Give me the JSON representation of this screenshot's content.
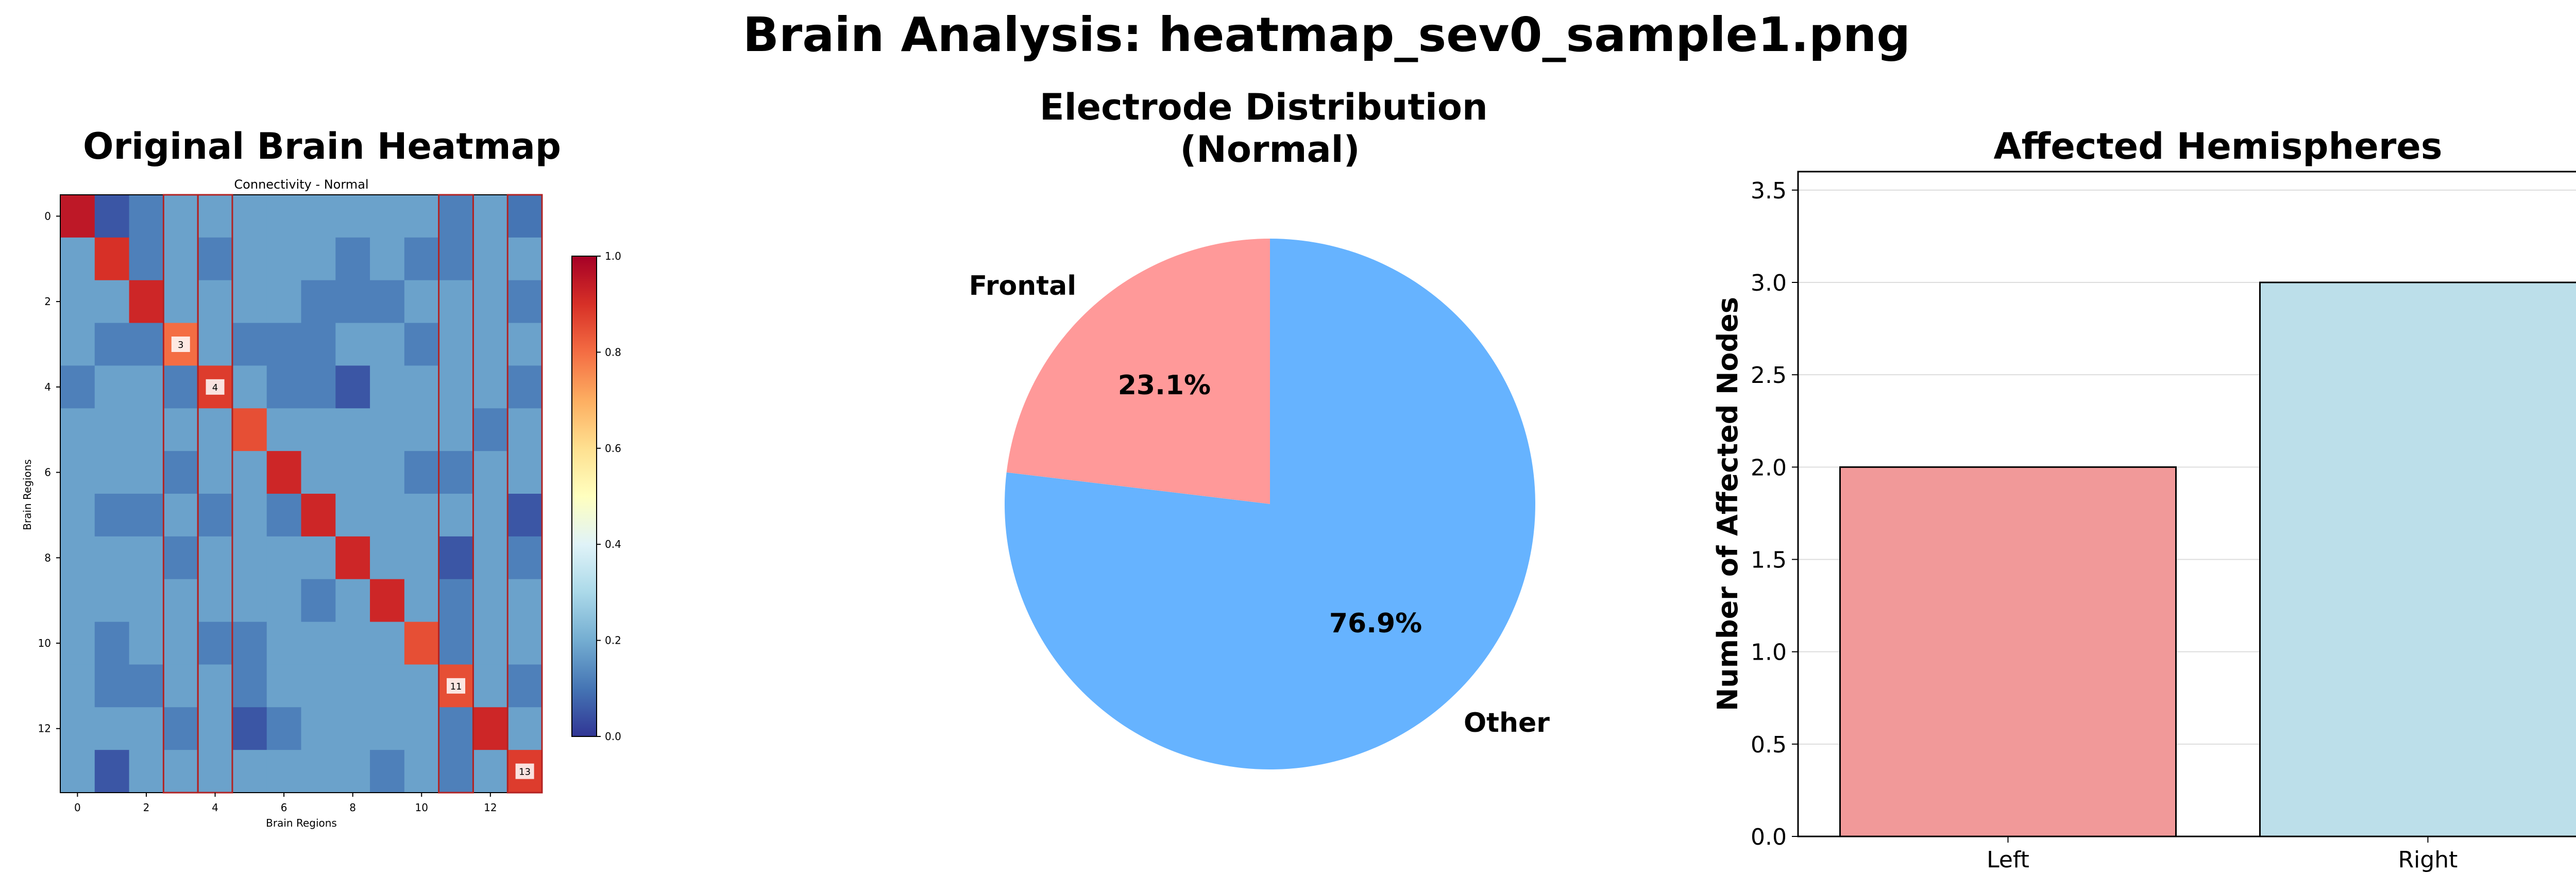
{
  "figure": {
    "suptitle": "Brain Analysis: heatmap_sev0_sample1.png"
  },
  "chart_data": [
    {
      "type": "heatmap",
      "title": "Original Brain Heatmap",
      "inner_title": "Connectivity - Normal",
      "xlabel": "Brain Regions",
      "ylabel": "Brain Regions",
      "x_ticks": [
        "0",
        "2",
        "4",
        "6",
        "8",
        "10",
        "12"
      ],
      "y_ticks": [
        "0",
        "2",
        "4",
        "6",
        "8",
        "10",
        "12"
      ],
      "colorbar": {
        "range": [
          0.0,
          1.0
        ],
        "ticks": [
          "0.0",
          "0.2",
          "0.4",
          "0.6",
          "0.8",
          "1.0"
        ],
        "colormap": "RdYlBu_r"
      },
      "highlighted_columns": [
        3,
        4,
        11,
        13
      ],
      "annotations": [
        {
          "row": 3,
          "col": 3,
          "text": "3"
        },
        {
          "row": 4,
          "col": 4,
          "text": "4"
        },
        {
          "row": 11,
          "col": 11,
          "text": "11"
        },
        {
          "row": 13,
          "col": 13,
          "text": "13"
        }
      ],
      "values": [
        [
          0.95,
          0.05,
          0.12,
          0.18,
          0.18,
          0.18,
          0.18,
          0.18,
          0.18,
          0.18,
          0.18,
          0.12,
          0.18,
          0.1
        ],
        [
          0.18,
          0.9,
          0.12,
          0.18,
          0.12,
          0.18,
          0.18,
          0.18,
          0.12,
          0.18,
          0.12,
          0.12,
          0.18,
          0.18
        ],
        [
          0.18,
          0.18,
          0.92,
          0.18,
          0.18,
          0.18,
          0.18,
          0.12,
          0.12,
          0.12,
          0.18,
          0.18,
          0.18,
          0.12
        ],
        [
          0.18,
          0.12,
          0.12,
          0.8,
          0.18,
          0.12,
          0.12,
          0.12,
          0.18,
          0.18,
          0.12,
          0.18,
          0.18,
          0.18
        ],
        [
          0.12,
          0.18,
          0.18,
          0.12,
          0.88,
          0.18,
          0.12,
          0.12,
          0.05,
          0.18,
          0.18,
          0.18,
          0.18,
          0.12
        ],
        [
          0.18,
          0.18,
          0.18,
          0.18,
          0.18,
          0.85,
          0.18,
          0.18,
          0.18,
          0.18,
          0.18,
          0.18,
          0.12,
          0.18
        ],
        [
          0.18,
          0.18,
          0.18,
          0.12,
          0.18,
          0.18,
          0.92,
          0.18,
          0.18,
          0.18,
          0.12,
          0.12,
          0.18,
          0.18
        ],
        [
          0.18,
          0.12,
          0.12,
          0.18,
          0.12,
          0.18,
          0.12,
          0.92,
          0.18,
          0.18,
          0.18,
          0.18,
          0.18,
          0.05
        ],
        [
          0.18,
          0.18,
          0.18,
          0.12,
          0.18,
          0.18,
          0.18,
          0.18,
          0.92,
          0.18,
          0.18,
          0.05,
          0.18,
          0.12
        ],
        [
          0.18,
          0.18,
          0.18,
          0.18,
          0.18,
          0.18,
          0.18,
          0.12,
          0.18,
          0.92,
          0.18,
          0.12,
          0.18,
          0.18
        ],
        [
          0.18,
          0.12,
          0.18,
          0.18,
          0.12,
          0.12,
          0.18,
          0.18,
          0.18,
          0.18,
          0.85,
          0.12,
          0.18,
          0.18
        ],
        [
          0.18,
          0.12,
          0.12,
          0.18,
          0.18,
          0.12,
          0.18,
          0.18,
          0.18,
          0.18,
          0.18,
          0.85,
          0.18,
          0.12
        ],
        [
          0.18,
          0.18,
          0.18,
          0.12,
          0.18,
          0.05,
          0.12,
          0.18,
          0.18,
          0.18,
          0.18,
          0.12,
          0.92,
          0.18
        ],
        [
          0.18,
          0.05,
          0.18,
          0.18,
          0.18,
          0.18,
          0.18,
          0.18,
          0.18,
          0.12,
          0.18,
          0.12,
          0.18,
          0.88
        ]
      ]
    },
    {
      "type": "pie",
      "title": "Electrode Distribution\n(Normal)",
      "slices": [
        {
          "label": "Frontal",
          "value": 23.1,
          "pct_label": "23.1%",
          "color": "#ff9999"
        },
        {
          "label": "Other",
          "value": 76.9,
          "pct_label": "76.9%",
          "color": "#66b3ff"
        }
      ]
    },
    {
      "type": "bar",
      "title": "Affected Hemispheres",
      "categories": [
        "Left",
        "Right"
      ],
      "values": [
        2,
        3
      ],
      "colors": [
        "#f19999",
        "#bcdfea"
      ],
      "ylabel": "Number of Affected Nodes",
      "ylim": [
        0,
        3.6
      ],
      "y_ticks": [
        "0.0",
        "0.5",
        "1.0",
        "1.5",
        "2.0",
        "2.5",
        "3.0",
        "3.5"
      ],
      "grid": "y"
    }
  ]
}
